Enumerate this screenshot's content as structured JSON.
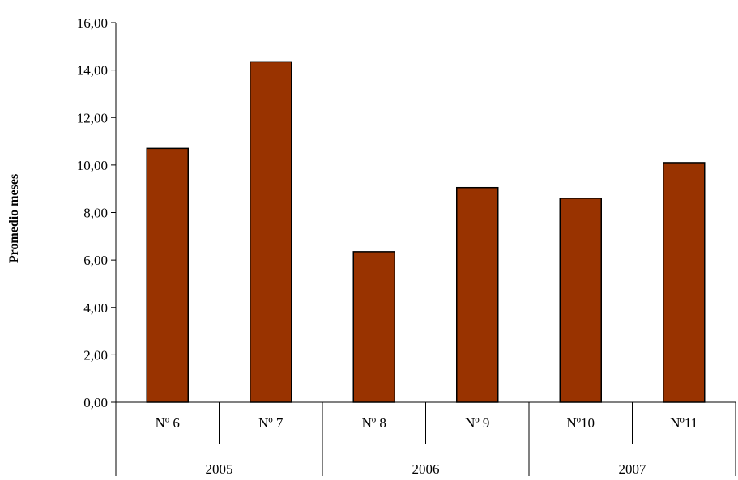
{
  "chart_data": {
    "type": "bar",
    "title": "",
    "xlabel": "",
    "ylabel": "Promedio meses",
    "ylim": [
      0,
      16
    ],
    "yticks": [
      "0,00",
      "2,00",
      "4,00",
      "6,00",
      "8,00",
      "10,00",
      "12,00",
      "14,00",
      "16,00"
    ],
    "grid": false,
    "legend": "none",
    "categories": [
      "Nº 6",
      "Nº 7",
      "Nº 8",
      "Nº 9",
      "Nº10",
      "Nº11"
    ],
    "groups": [
      {
        "label": "2005",
        "categories": [
          "Nº 6",
          "Nº 7"
        ]
      },
      {
        "label": "2006",
        "categories": [
          "Nº 8",
          "Nº 9"
        ]
      },
      {
        "label": "2007",
        "categories": [
          "Nº10",
          "Nº11"
        ]
      }
    ],
    "values": [
      10.7,
      14.35,
      6.35,
      9.05,
      8.6,
      10.1
    ],
    "bar_color": "#993300",
    "bar_stroke": "#000000"
  }
}
